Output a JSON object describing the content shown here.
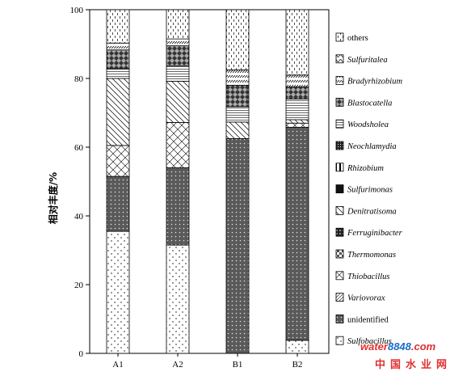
{
  "chart_data": {
    "type": "bar",
    "stacked": true,
    "categories": [
      "A1",
      "A2",
      "B1",
      "B2"
    ],
    "ylabel": "相对丰度/%",
    "ylim": [
      0,
      100
    ],
    "yticks": [
      0,
      20,
      40,
      60,
      80,
      100
    ],
    "legend_position": "right",
    "series": [
      {
        "name": "Sulfobacillus",
        "pattern": "dots-sparse",
        "values": [
          35.5,
          31.5,
          0,
          3.8
        ]
      },
      {
        "name": "unidentified",
        "pattern": "dark-dots",
        "values": [
          16,
          22.5,
          62.5,
          62.0
        ]
      },
      {
        "name": "Variovorax",
        "pattern": "hatch-fine",
        "values": [
          0,
          0,
          0,
          0
        ]
      },
      {
        "name": "Thiobacillus",
        "pattern": "crosshatch-diag",
        "values": [
          9,
          13.2,
          0,
          1.2
        ]
      },
      {
        "name": "Thermomonas",
        "pattern": "checker-dots",
        "values": [
          0,
          0,
          0,
          0
        ]
      },
      {
        "name": "Ferruginibacter",
        "pattern": "checker-dark",
        "values": [
          0,
          0,
          0,
          0
        ]
      },
      {
        "name": "Denitratisoma",
        "pattern": "diag-wide",
        "values": [
          19.5,
          12,
          4.8,
          1.0
        ]
      },
      {
        "name": "Sulfurimonas",
        "pattern": "solid-dark",
        "values": [
          0,
          0,
          0,
          0
        ]
      },
      {
        "name": "Rhizobium",
        "pattern": "vlines-thick",
        "values": [
          0,
          0,
          0,
          0
        ]
      },
      {
        "name": "Neochlamydia",
        "pattern": "dots-dense",
        "values": [
          0,
          0,
          0,
          0
        ]
      },
      {
        "name": "Woodsholea",
        "pattern": "hlines",
        "values": [
          2.8,
          4.5,
          4.5,
          6
        ]
      },
      {
        "name": "Blastocatella",
        "pattern": "diamond-dark",
        "values": [
          5.5,
          5.8,
          6.2,
          3.5
        ]
      },
      {
        "name": "Bradyrhizobium",
        "pattern": "dashed-diag",
        "values": [
          2,
          2,
          4.5,
          3.5
        ]
      },
      {
        "name": "Sulfuritalea",
        "pattern": "wave",
        "values": [
          0,
          0,
          0,
          0
        ]
      },
      {
        "name": "others",
        "pattern": "vdash",
        "values": [
          9.7,
          8.5,
          17.5,
          19
        ]
      }
    ],
    "legend": [
      {
        "label": "others",
        "pattern": "vdash",
        "italic": false
      },
      {
        "label": "Sulfuritalea",
        "pattern": "wave",
        "italic": true
      },
      {
        "label": "Bradyrhizobium",
        "pattern": "dashed-diag",
        "italic": true
      },
      {
        "label": "Blastocatella",
        "pattern": "diamond-dark",
        "italic": true
      },
      {
        "label": "Woodsholea",
        "pattern": "hlines",
        "italic": true
      },
      {
        "label": "Neochlamydia",
        "pattern": "dots-dense",
        "italic": true
      },
      {
        "label": "Rhizobium",
        "pattern": "vlines-thick",
        "italic": true
      },
      {
        "label": "Sulfurimonas",
        "pattern": "solid-dark",
        "italic": true
      },
      {
        "label": "Denitratisoma",
        "pattern": "diag-wide",
        "italic": true
      },
      {
        "label": "Ferruginibacter",
        "pattern": "checker-dark",
        "italic": true
      },
      {
        "label": "Thermomonas",
        "pattern": "checker-dots",
        "italic": true
      },
      {
        "label": "Thiobacillus",
        "pattern": "crosshatch-diag",
        "italic": true
      },
      {
        "label": "Variovorax",
        "pattern": "hatch-fine",
        "italic": true
      },
      {
        "label": "unidentified",
        "pattern": "dark-dots",
        "italic": false
      },
      {
        "label": "Sulfobacillus",
        "pattern": "dots-sparse",
        "italic": true
      }
    ]
  },
  "watermark": {
    "part_a": "water",
    "part_b": "8848",
    "part_c": ".com",
    "cn": "中国水业网"
  }
}
